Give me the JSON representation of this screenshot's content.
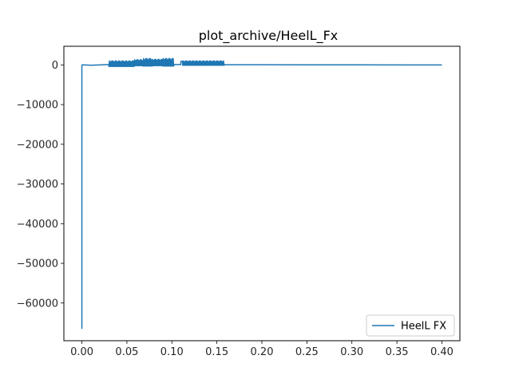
{
  "chart_data": {
    "type": "line",
    "title": "plot_archive/HeelL_Fx",
    "xlabel": "",
    "ylabel": "",
    "xlim": [
      -0.02,
      0.42
    ],
    "ylim": [
      -69500,
      4700
    ],
    "xticks": [
      0.0,
      0.05,
      0.1,
      0.15,
      0.2,
      0.25,
      0.3,
      0.35,
      0.4
    ],
    "xtick_labels": [
      "0.00",
      "0.05",
      "0.10",
      "0.15",
      "0.20",
      "0.25",
      "0.30",
      "0.35",
      "0.40"
    ],
    "yticks": [
      0,
      -10000,
      -20000,
      -30000,
      -40000,
      -50000,
      -60000
    ],
    "ytick_labels": [
      "0",
      "−10000",
      "−20000",
      "−30000",
      "−40000",
      "−50000",
      "−60000"
    ],
    "grid": false,
    "legend": {
      "position": "lower-right"
    },
    "series": [
      {
        "name": "HeelL FX",
        "color": "#1f77b4",
        "segments": [
          {
            "kind": "points",
            "x": [
              0.0,
              0.0,
              0.0005,
              0.01,
              0.03
            ],
            "y": [
              -66500,
              -200,
              30,
              -80,
              100
            ]
          },
          {
            "kind": "oscillation",
            "x_start": 0.03,
            "x_end": 0.058,
            "low": -400,
            "high": 1000,
            "cycles": 22
          },
          {
            "kind": "oscillation",
            "x_start": 0.058,
            "x_end": 0.068,
            "low": -200,
            "high": 1300,
            "cycles": 8
          },
          {
            "kind": "oscillation",
            "x_start": 0.068,
            "x_end": 0.078,
            "low": -300,
            "high": 1600,
            "cycles": 8
          },
          {
            "kind": "oscillation",
            "x_start": 0.078,
            "x_end": 0.09,
            "low": -200,
            "high": 1400,
            "cycles": 10
          },
          {
            "kind": "oscillation",
            "x_start": 0.09,
            "x_end": 0.102,
            "low": -300,
            "high": 1600,
            "cycles": 10
          },
          {
            "kind": "points",
            "x": [
              0.102,
              0.11,
              0.11,
              0.112
            ],
            "y": [
              100,
              100,
              900,
              900
            ]
          },
          {
            "kind": "oscillation",
            "x_start": 0.112,
            "x_end": 0.158,
            "low": -100,
            "high": 1000,
            "cycles": 36
          },
          {
            "kind": "points",
            "x": [
              0.158,
              0.2,
              0.3,
              0.4
            ],
            "y": [
              80,
              50,
              20,
              0
            ]
          }
        ]
      }
    ]
  }
}
